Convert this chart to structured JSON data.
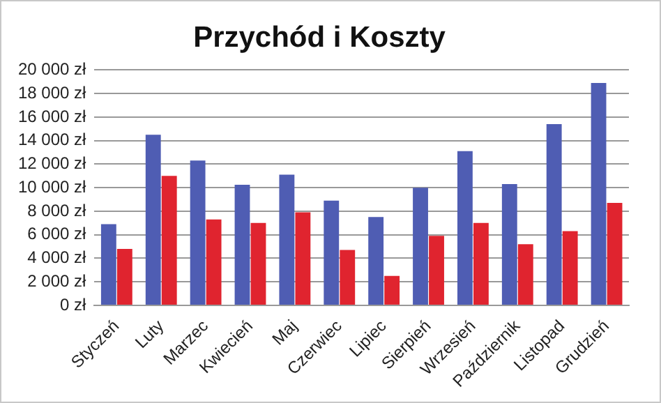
{
  "chart_data": {
    "type": "bar",
    "title": "Przychód i Koszty",
    "categories": [
      "Styczeń",
      "Luty",
      "Marzec",
      "Kwiecień",
      "Maj",
      "Czerwiec",
      "Lipiec",
      "Sierpień",
      "Wrzesień",
      "Październik",
      "Listopad",
      "Grudzień"
    ],
    "series": [
      {
        "color": "#4f5db3",
        "values": [
          6900,
          14500,
          12300,
          10250,
          11100,
          8900,
          7500,
          10000,
          13100,
          10300,
          15400,
          18900
        ]
      },
      {
        "color": "#e0242f",
        "values": [
          4800,
          11000,
          7300,
          7000,
          7900,
          4700,
          2500,
          5900,
          7000,
          5200,
          6300,
          8700
        ]
      }
    ],
    "ylim": [
      0,
      20000
    ],
    "yticks": [
      {
        "value": 0,
        "label": "0 zł"
      },
      {
        "value": 2000,
        "label": "2 000 zł"
      },
      {
        "value": 4000,
        "label": "4 000 zł"
      },
      {
        "value": 6000,
        "label": "6 000 zł"
      },
      {
        "value": 8000,
        "label": "8 000 zł"
      },
      {
        "value": 10000,
        "label": "10 000 zł"
      },
      {
        "value": 12000,
        "label": "12 000 zł"
      },
      {
        "value": 14000,
        "label": "14 000 zł"
      },
      {
        "value": 16000,
        "label": "16 000 zł"
      },
      {
        "value": 18000,
        "label": "18 000 zł"
      },
      {
        "value": 20000,
        "label": "20 000 zł"
      }
    ],
    "grid": "y",
    "legend": false
  }
}
